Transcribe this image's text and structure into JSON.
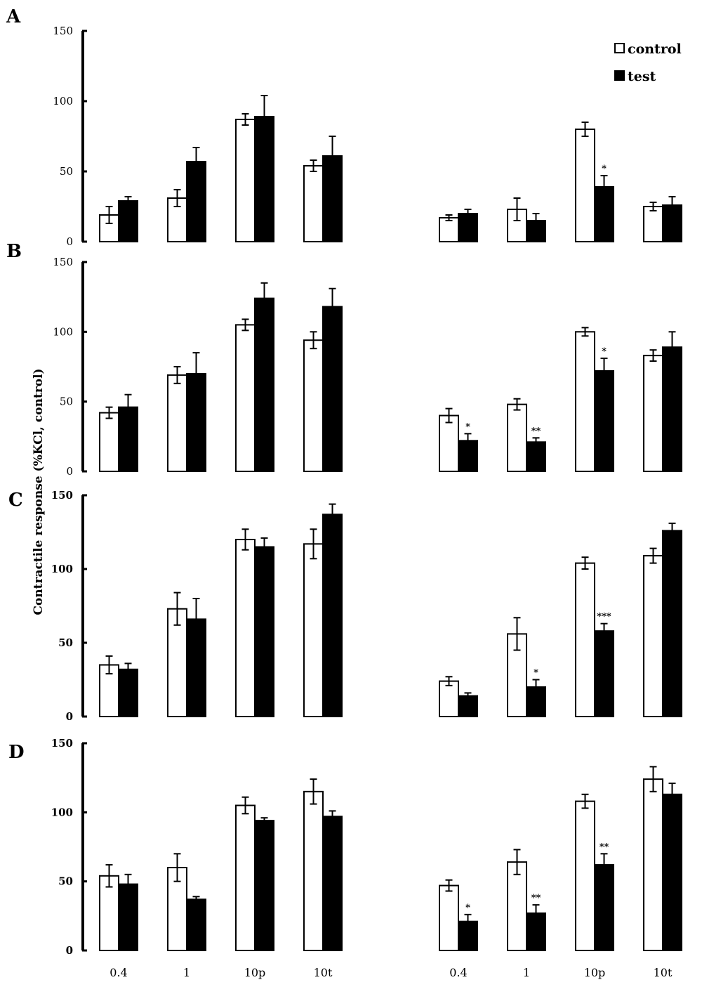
{
  "chart_data": {
    "type": "bar",
    "ylabel": "Contractile response (%KCl, control)",
    "categories": [
      "0.4",
      "1",
      "10p",
      "10t"
    ],
    "legend": {
      "placement": "top-right",
      "items": [
        {
          "name": "control",
          "color": "#ffffff"
        },
        {
          "name": "test",
          "color": "#000000"
        }
      ]
    },
    "ylim": [
      0,
      150
    ],
    "yticks": [
      "0",
      "50",
      "100",
      "150"
    ],
    "panels": [
      {
        "label": "A",
        "groups": [
          {
            "control": [
              19,
              31,
              87,
              54
            ],
            "control_err": [
              6,
              6,
              4,
              4
            ],
            "test": [
              29,
              57,
              89,
              61
            ],
            "test_err": [
              3,
              10,
              15,
              14
            ],
            "sig": [
              "",
              "",
              "",
              ""
            ]
          },
          {
            "control": [
              17,
              23,
              80,
              25
            ],
            "control_err": [
              2,
              8,
              5,
              3
            ],
            "test": [
              20,
              15,
              39,
              26
            ],
            "test_err": [
              3,
              5,
              8,
              6
            ],
            "sig": [
              "",
              "",
              "*",
              ""
            ]
          }
        ]
      },
      {
        "label": "B",
        "groups": [
          {
            "control": [
              42,
              69,
              105,
              94
            ],
            "control_err": [
              4,
              6,
              4,
              6
            ],
            "test": [
              46,
              70,
              124,
              118
            ],
            "test_err": [
              9,
              15,
              11,
              13
            ],
            "sig": [
              "",
              "",
              "",
              ""
            ]
          },
          {
            "control": [
              40,
              48,
              100,
              83
            ],
            "control_err": [
              5,
              4,
              3,
              4
            ],
            "test": [
              22,
              21,
              72,
              89
            ],
            "test_err": [
              5,
              3,
              9,
              11
            ],
            "sig": [
              "*",
              "**",
              "*",
              ""
            ]
          }
        ]
      },
      {
        "label": "C",
        "groups": [
          {
            "control": [
              35,
              73,
              120,
              117
            ],
            "control_err": [
              6,
              11,
              7,
              10
            ],
            "test": [
              32,
              66,
              115,
              137
            ],
            "test_err": [
              4,
              14,
              6,
              7
            ],
            "sig": [
              "",
              "",
              "",
              ""
            ]
          },
          {
            "control": [
              24,
              56,
              104,
              109
            ],
            "control_err": [
              3,
              11,
              4,
              5
            ],
            "test": [
              14,
              20,
              58,
              126
            ],
            "test_err": [
              2,
              5,
              5,
              5
            ],
            "sig": [
              "",
              "*",
              "***",
              ""
            ]
          }
        ]
      },
      {
        "label": "D",
        "groups": [
          {
            "control": [
              54,
              60,
              105,
              115
            ],
            "control_err": [
              8,
              10,
              6,
              9
            ],
            "test": [
              48,
              37,
              94,
              97
            ],
            "test_err": [
              7,
              2,
              2,
              4
            ],
            "sig": [
              "",
              "",
              "",
              ""
            ]
          },
          {
            "control": [
              47,
              64,
              108,
              124
            ],
            "control_err": [
              4,
              9,
              5,
              9
            ],
            "test": [
              21,
              27,
              62,
              113
            ],
            "test_err": [
              5,
              6,
              8,
              8
            ],
            "sig": [
              "*",
              "**",
              "**",
              ""
            ]
          }
        ]
      }
    ]
  }
}
